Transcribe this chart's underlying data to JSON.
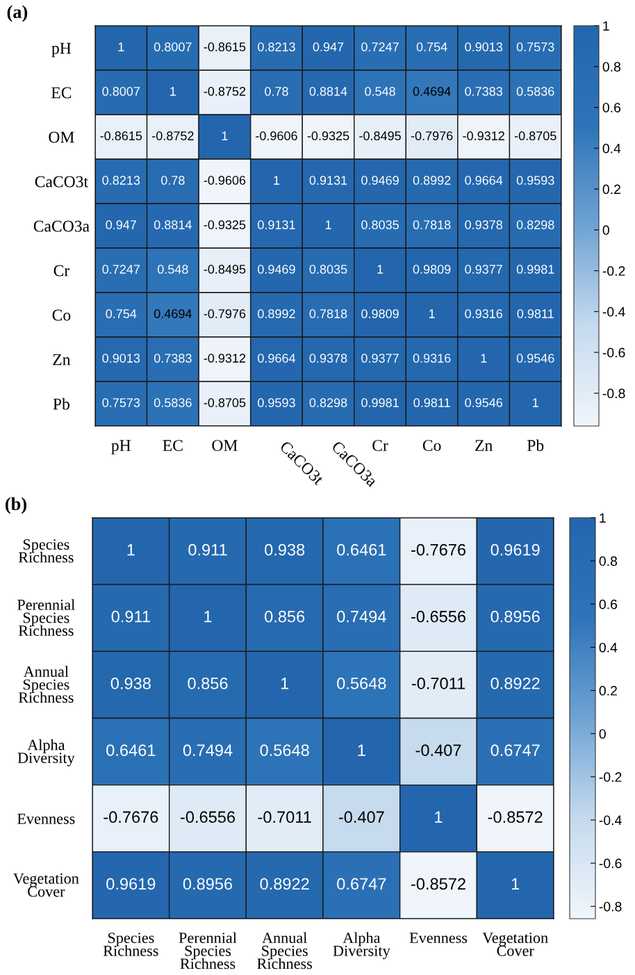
{
  "chart_data": [
    {
      "type": "heatmap",
      "title": "(a)",
      "categories": [
        "pH",
        "EC",
        "OM",
        "CaCO3t",
        "CaCO3a",
        "Cr",
        "Co",
        "Zn",
        "Pb"
      ],
      "y_categories": [
        "pH",
        "EC",
        "OM",
        "CaCO3t",
        "CaCO3a",
        "Cr",
        "Co",
        "Zn",
        "Pb"
      ],
      "cells": [
        [
          1,
          0.8007,
          -0.8615,
          0.8213,
          0.947,
          0.7247,
          0.754,
          0.9013,
          0.7573
        ],
        [
          0.8007,
          1,
          -0.8752,
          0.78,
          0.8814,
          0.548,
          0.4694,
          0.7383,
          0.5836
        ],
        [
          -0.8615,
          -0.8752,
          1,
          -0.9606,
          -0.9325,
          -0.8495,
          -0.7976,
          -0.9312,
          -0.8705
        ],
        [
          0.8213,
          0.78,
          -0.9606,
          1,
          0.9131,
          0.9469,
          0.8992,
          0.9664,
          0.9593
        ],
        [
          0.947,
          0.8814,
          -0.9325,
          0.9131,
          1,
          0.8035,
          0.7818,
          0.9378,
          0.8298
        ],
        [
          0.7247,
          0.548,
          -0.8495,
          0.9469,
          0.8035,
          1,
          0.9809,
          0.9377,
          0.9981
        ],
        [
          0.754,
          0.4694,
          -0.7976,
          0.8992,
          0.7818,
          0.9809,
          1,
          0.9316,
          0.9811
        ],
        [
          0.9013,
          0.7383,
          -0.9312,
          0.9664,
          0.9378,
          0.9377,
          0.9316,
          1,
          0.9546
        ],
        [
          0.7573,
          0.5836,
          -0.8705,
          0.9593,
          0.8298,
          0.9981,
          0.9811,
          0.9546,
          1
        ]
      ],
      "data_labels": true,
      "clim": [
        -0.9606,
        1
      ],
      "cticks": [
        -0.8,
        -0.6,
        -0.4,
        -0.2,
        0,
        0.2,
        0.4,
        0.6,
        0.8,
        1
      ]
    },
    {
      "type": "heatmap",
      "title": "(b)",
      "categories": [
        "Species\nRichness",
        "Perennial\nSpecies\nRichness",
        "Annual\nSpecies\nRichness",
        "Alpha\nDiversity",
        "Evenness",
        "Vegetation\nCover"
      ],
      "y_categories": [
        "Species\nRichness",
        "Perennial\nSpecies\nRichness",
        "Annual\nSpecies\nRichness",
        "Alpha\nDiversity",
        "Evenness",
        "Vegetation\nCover"
      ],
      "cells": [
        [
          1,
          0.911,
          0.938,
          0.6461,
          -0.7676,
          0.9619
        ],
        [
          0.911,
          1,
          0.856,
          0.7494,
          -0.6556,
          0.8956
        ],
        [
          0.938,
          0.856,
          1,
          0.5648,
          -0.7011,
          0.8922
        ],
        [
          0.6461,
          0.7494,
          0.5648,
          1,
          -0.407,
          0.6747
        ],
        [
          -0.7676,
          -0.6556,
          -0.7011,
          -0.407,
          1,
          -0.8572
        ],
        [
          0.9619,
          0.8956,
          0.8922,
          0.6747,
          -0.8572,
          1
        ]
      ],
      "data_labels": true,
      "clim": [
        -0.8572,
        1
      ],
      "cticks": [
        -0.8,
        -0.6,
        -0.4,
        -0.2,
        0,
        0.2,
        0.4,
        0.6,
        0.8,
        1
      ]
    }
  ]
}
